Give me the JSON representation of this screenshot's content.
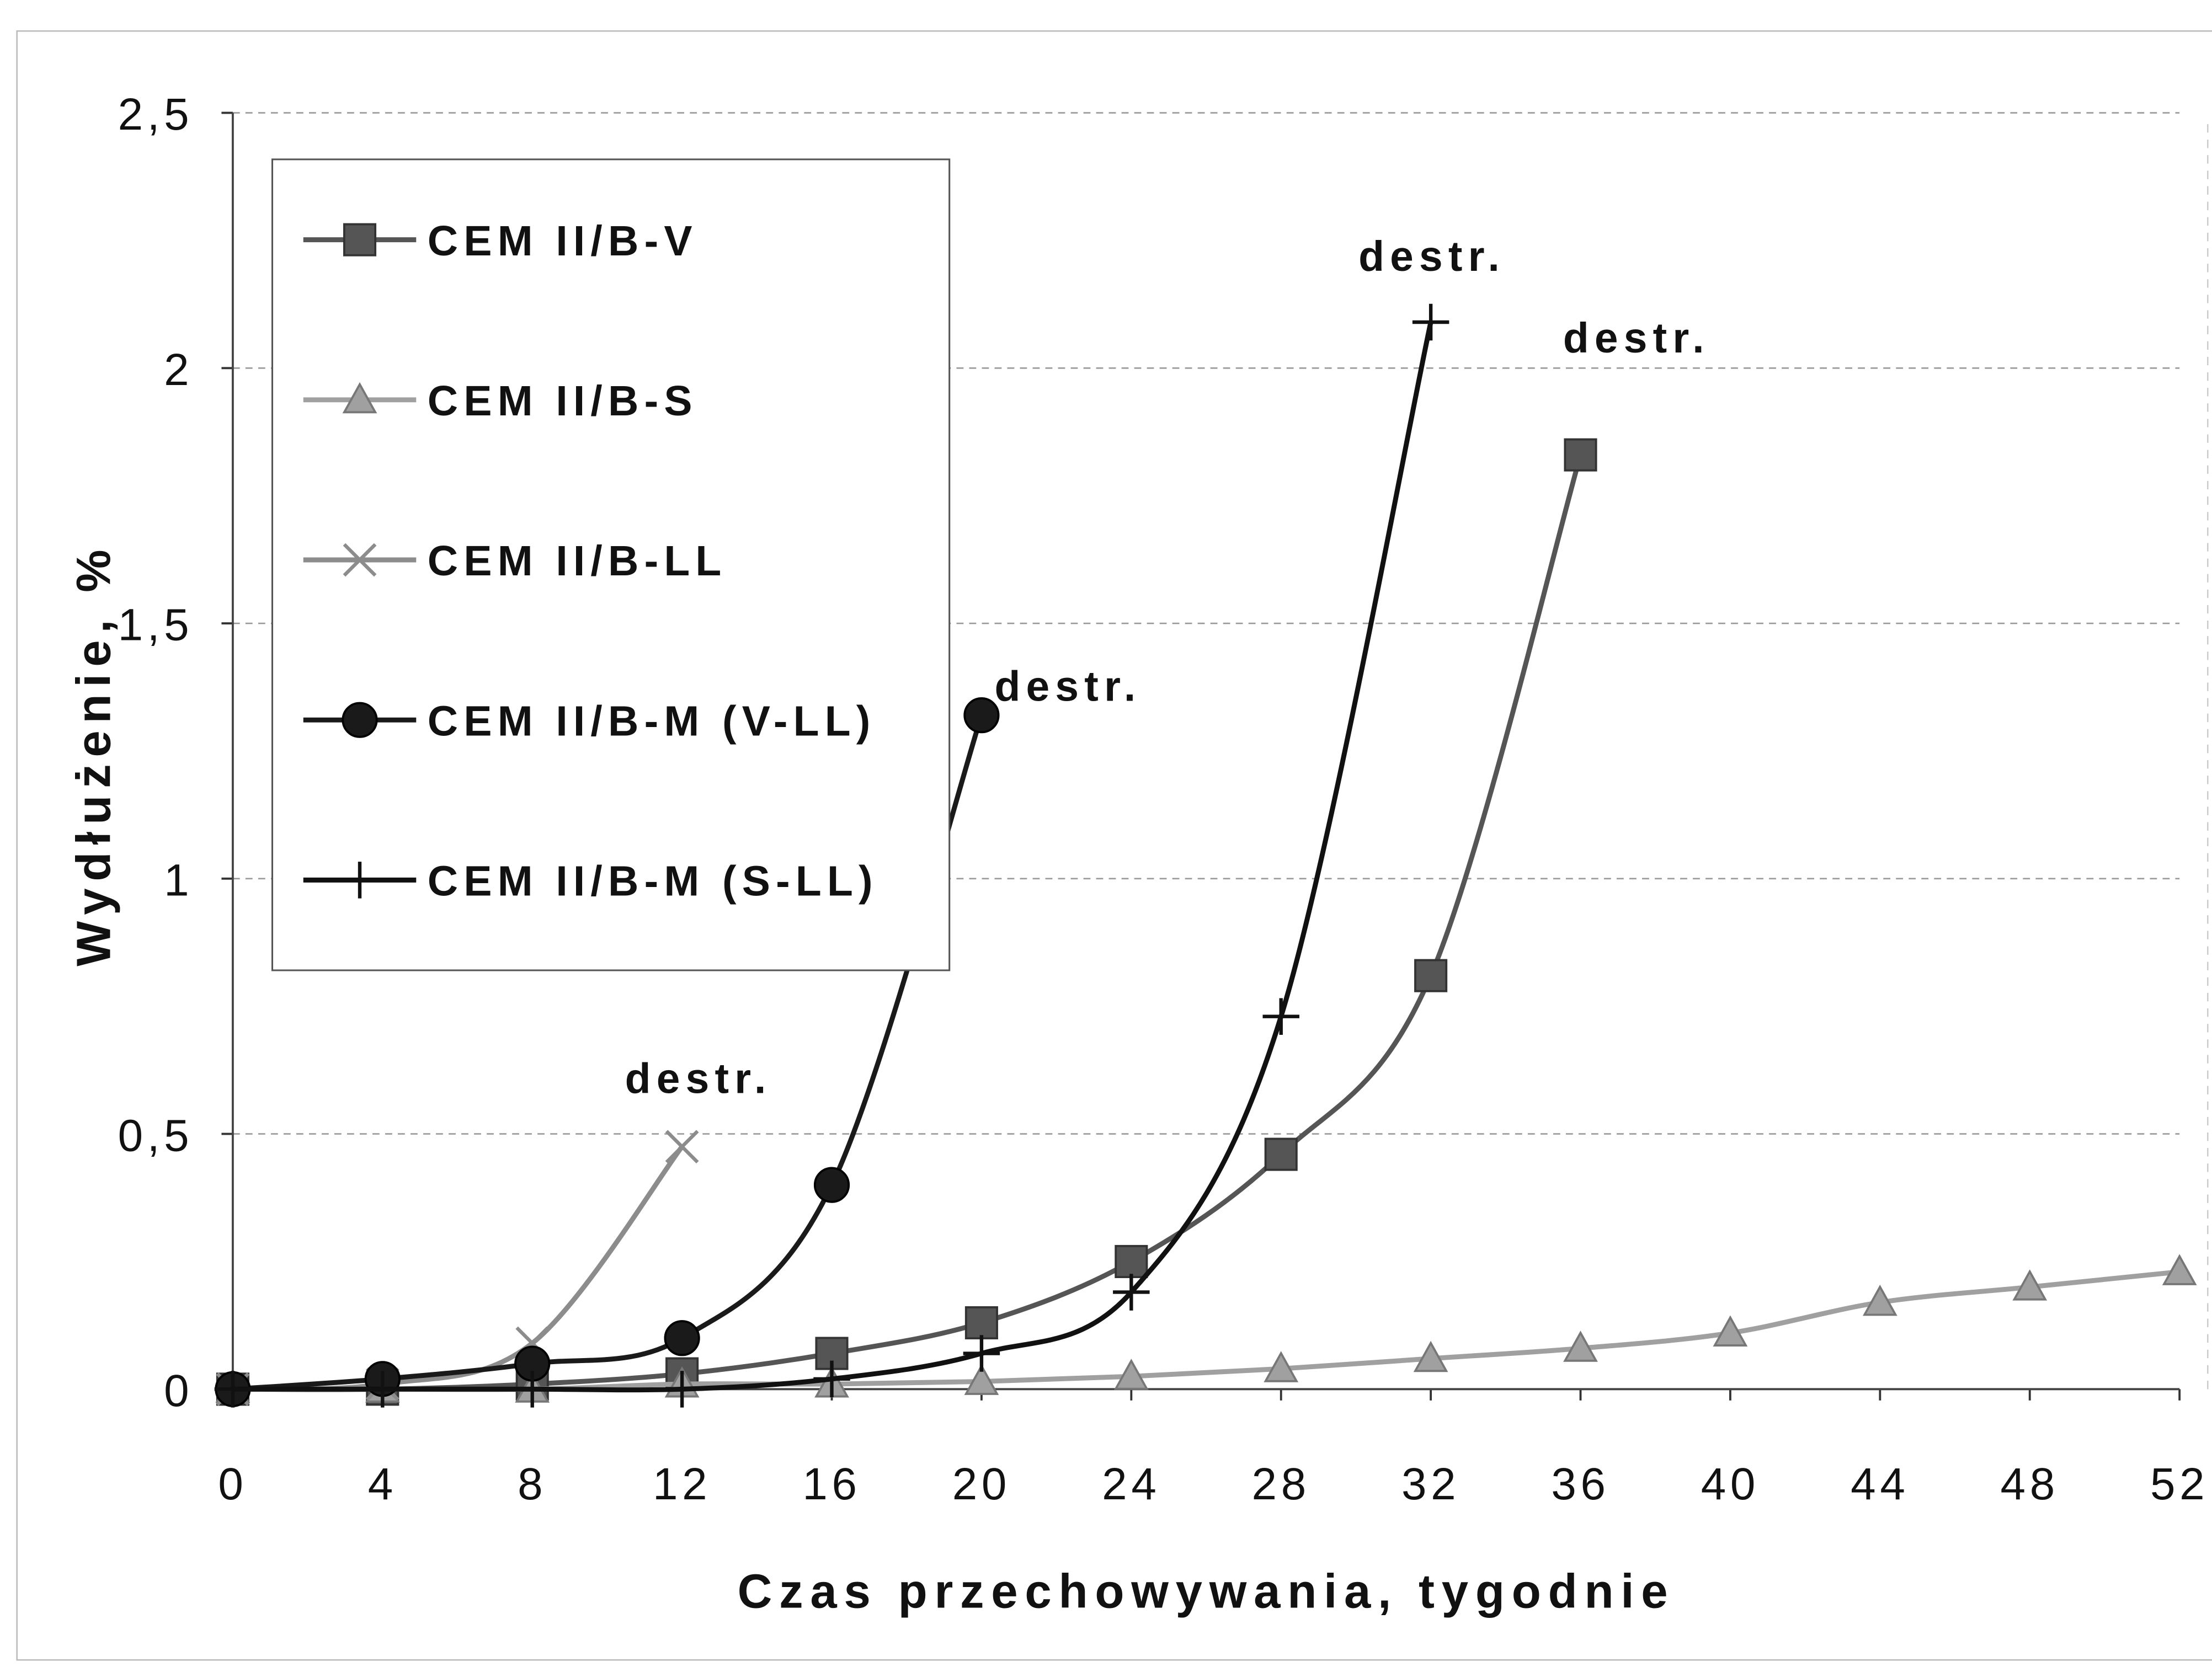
{
  "chart_data": {
    "type": "line",
    "x_label": "Czas przechowywania, tygodnie",
    "y_label": "Wydłużenie, %",
    "xlim": [
      0,
      52
    ],
    "xticks": [
      0,
      4,
      8,
      12,
      16,
      20,
      24,
      28,
      32,
      36,
      40,
      44,
      48,
      52
    ],
    "ylim": [
      0,
      2.5
    ],
    "yticks": [
      {
        "value": 0,
        "label": "0"
      },
      {
        "value": 0.5,
        "label": "0,5"
      },
      {
        "value": 1,
        "label": "1"
      },
      {
        "value": 1.5,
        "label": "1,5"
      },
      {
        "value": 2,
        "label": "2"
      },
      {
        "value": 2.5,
        "label": "2,5"
      }
    ],
    "grid": true,
    "legend": "upper left",
    "series": [
      {
        "name": "CEM II/B-V",
        "color": "#555555",
        "marker": "square",
        "x": [
          0,
          4,
          8,
          12,
          16,
          20,
          24,
          28,
          32,
          36
        ],
        "values": [
          0,
          0,
          0.01,
          0.03,
          0.07,
          0.13,
          0.25,
          0.46,
          0.81,
          1.83
        ]
      },
      {
        "name": "CEM II/B-S",
        "color": "#a0a0a0",
        "marker": "triangle",
        "x": [
          0,
          4,
          8,
          12,
          16,
          20,
          24,
          28,
          32,
          36,
          40,
          44,
          48,
          52
        ],
        "values": [
          0,
          0,
          0,
          0.01,
          0.01,
          0.015,
          0.025,
          0.04,
          0.06,
          0.08,
          0.11,
          0.17,
          0.2,
          0.23
        ]
      },
      {
        "name": "CEM II/B-LL",
        "color": "#8c8c8c",
        "marker": "x",
        "x": [
          0,
          4,
          8,
          12
        ],
        "values": [
          0,
          0.01,
          0.09,
          0.475
        ]
      },
      {
        "name": "CEM II/B-M (V-LL)",
        "color": "#1a1a1a",
        "marker": "circle",
        "x": [
          0,
          4,
          8,
          12,
          16,
          20
        ],
        "values": [
          0,
          0.02,
          0.05,
          0.1,
          0.4,
          1.32
        ]
      },
      {
        "name": "CEM II/B-M (S-LL)",
        "color": "#111111",
        "marker": "plus",
        "x": [
          0,
          4,
          8,
          12,
          16,
          20,
          24,
          28,
          32
        ],
        "values": [
          0,
          0,
          0,
          0,
          0.02,
          0.07,
          0.19,
          0.73,
          2.09
        ]
      }
    ],
    "annotations": [
      "destr.",
      "destr.",
      "destr.",
      "destr."
    ]
  }
}
